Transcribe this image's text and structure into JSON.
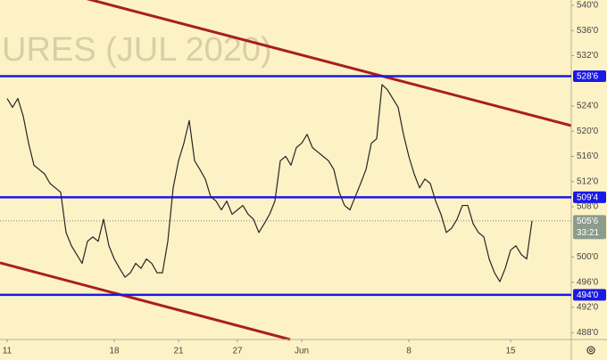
{
  "chart_data": {
    "type": "line",
    "watermark": "URES (JUL 2020)",
    "categories": [
      "11",
      null,
      null,
      null,
      null,
      null,
      null,
      null,
      null,
      null,
      null,
      null,
      null,
      null,
      null,
      null,
      null,
      null,
      null,
      null,
      "18",
      null,
      null,
      null,
      null,
      null,
      null,
      null,
      null,
      null,
      null,
      null,
      "21",
      null,
      null,
      null,
      null,
      null,
      null,
      null,
      null,
      null,
      null,
      "27",
      null,
      null,
      null,
      null,
      null,
      null,
      null,
      null,
      null,
      null,
      null,
      "Jun",
      null,
      null,
      null,
      null,
      null,
      null,
      null,
      null,
      null,
      null,
      null,
      null,
      null,
      null,
      null,
      null,
      null,
      null,
      null,
      "8",
      null,
      null,
      null,
      null,
      null,
      null,
      null,
      null,
      null,
      null,
      null,
      null,
      null,
      null,
      null,
      null,
      null,
      null,
      "15",
      null,
      null,
      null,
      null
    ],
    "series": [
      {
        "color": "#262626",
        "values": [
          525.2,
          523.8,
          525.2,
          522.4,
          518.1,
          514.6,
          513.9,
          513.2,
          511.7,
          511.0,
          510.3,
          503.9,
          501.8,
          500.4,
          499.0,
          502.5,
          503.2,
          502.5,
          506.0,
          501.8,
          499.7,
          498.2,
          496.8,
          497.5,
          499.0,
          498.2,
          499.7,
          499.0,
          497.5,
          497.5,
          502.5,
          511.0,
          515.3,
          518.1,
          521.7,
          515.3,
          513.9,
          512.4,
          509.6,
          508.9,
          507.5,
          508.9,
          506.8,
          507.5,
          508.2,
          506.8,
          506.0,
          503.9,
          505.3,
          506.8,
          508.9,
          515.3,
          516.0,
          514.6,
          517.4,
          518.1,
          519.5,
          517.4,
          516.7,
          516.0,
          515.3,
          513.9,
          510.3,
          508.2,
          507.5,
          509.6,
          511.7,
          513.9,
          518.1,
          518.8,
          527.4,
          526.6,
          525.2,
          523.8,
          519.5,
          516.0,
          513.2,
          511.0,
          512.4,
          511.7,
          508.9,
          506.8,
          503.9,
          504.6,
          506.0,
          508.2,
          508.2,
          505.3,
          503.9,
          503.2,
          499.7,
          497.5,
          496.1,
          498.2,
          501.1,
          501.8,
          500.4,
          499.7,
          505.75
        ]
      }
    ],
    "ylim": [
      486.9,
      540.85
    ],
    "yticks": [
      {
        "value": 540,
        "label": "540'0"
      },
      {
        "value": 536,
        "label": "536'0"
      },
      {
        "value": 532,
        "label": "532'0"
      },
      {
        "value": 524,
        "label": "524'0"
      },
      {
        "value": 520,
        "label": "520'0"
      },
      {
        "value": 516,
        "label": "516'0"
      },
      {
        "value": 512,
        "label": "512'0"
      },
      {
        "value": 508,
        "label": "508'0"
      },
      {
        "value": 500,
        "label": "500'0"
      },
      {
        "value": 496,
        "label": "496'0"
      },
      {
        "value": 492,
        "label": "492'0"
      },
      {
        "value": 488,
        "label": "488'0"
      }
    ],
    "levels": [
      {
        "value": 528.75,
        "label": "528'6"
      },
      {
        "value": 509.5,
        "label": "509'4"
      },
      {
        "value": 494,
        "label": "494'0"
      }
    ],
    "level_color": "#1a1ae6",
    "last_price": {
      "value": 505.75,
      "label": "505'6",
      "countdown": "33:21",
      "color": "#8c9c8c"
    },
    "grid": false
  }
}
